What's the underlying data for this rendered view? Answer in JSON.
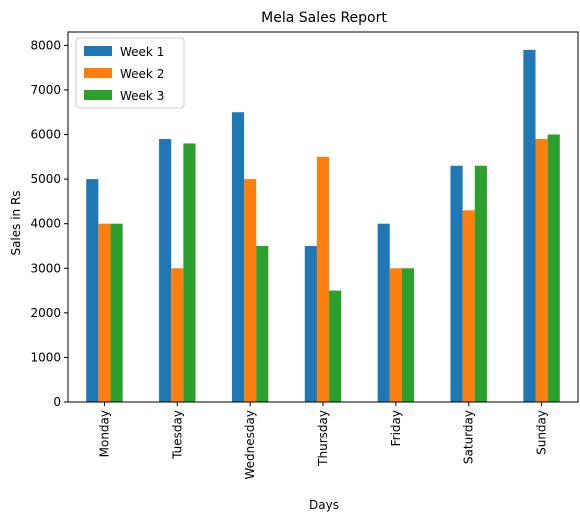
{
  "chart_data": {
    "type": "bar",
    "title": "Mela Sales Report",
    "xlabel": "Days",
    "ylabel": "Sales in Rs",
    "ylim": [
      0,
      8300
    ],
    "yticks": [
      0,
      1000,
      2000,
      3000,
      4000,
      5000,
      6000,
      7000,
      8000
    ],
    "grid": false,
    "legend_position": "top-left",
    "categories": [
      "Monday",
      "Tuesday",
      "Wednesday",
      "Thursday",
      "Friday",
      "Saturday",
      "Sunday"
    ],
    "series": [
      {
        "name": "Week 1",
        "color": "#1f77b4",
        "values": [
          5000,
          5900,
          6500,
          3500,
          4000,
          5300,
          7900
        ]
      },
      {
        "name": "Week 2",
        "color": "#ff7f0e",
        "values": [
          4000,
          3000,
          5000,
          5500,
          3000,
          4300,
          5900
        ]
      },
      {
        "name": "Week 3",
        "color": "#2ca02c",
        "values": [
          4000,
          5800,
          3500,
          2500,
          3000,
          5300,
          6000
        ]
      }
    ]
  }
}
